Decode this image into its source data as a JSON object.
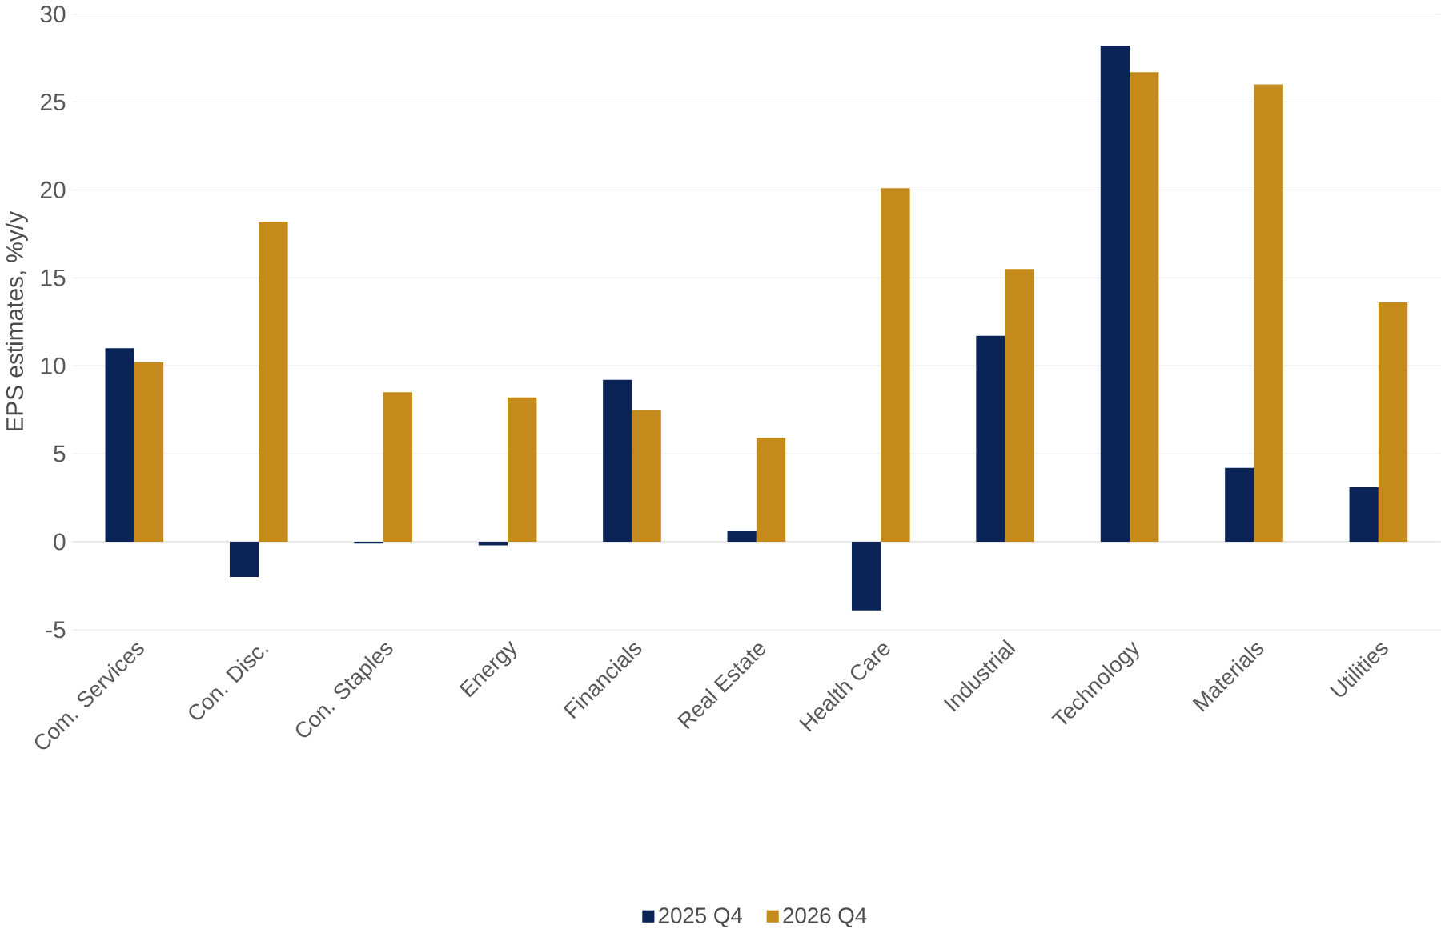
{
  "chart_data": {
    "type": "bar",
    "ylabel": "EPS estimates, %y/y",
    "categories": [
      "Com. Services",
      "Con. Disc.",
      "Con. Staples",
      "Energy",
      "Financials",
      "Real Estate",
      "Health Care",
      "Industrial",
      "Technology",
      "Materials",
      "Utilities"
    ],
    "series": [
      {
        "name": "2025 Q4",
        "color": "#0a2458",
        "values": [
          11.0,
          -2.0,
          -0.1,
          -0.2,
          9.2,
          0.6,
          -3.9,
          11.7,
          28.2,
          4.2,
          3.1
        ]
      },
      {
        "name": "2026 Q4",
        "color": "#c48a1c",
        "values": [
          10.2,
          18.2,
          8.5,
          8.2,
          7.5,
          5.9,
          20.1,
          15.5,
          26.7,
          26.0,
          13.6
        ]
      }
    ],
    "ylim": [
      -5,
      30
    ],
    "yticks": [
      -5,
      0,
      5,
      10,
      15,
      20,
      25,
      30
    ],
    "grid": "y",
    "legend": "bottom"
  }
}
